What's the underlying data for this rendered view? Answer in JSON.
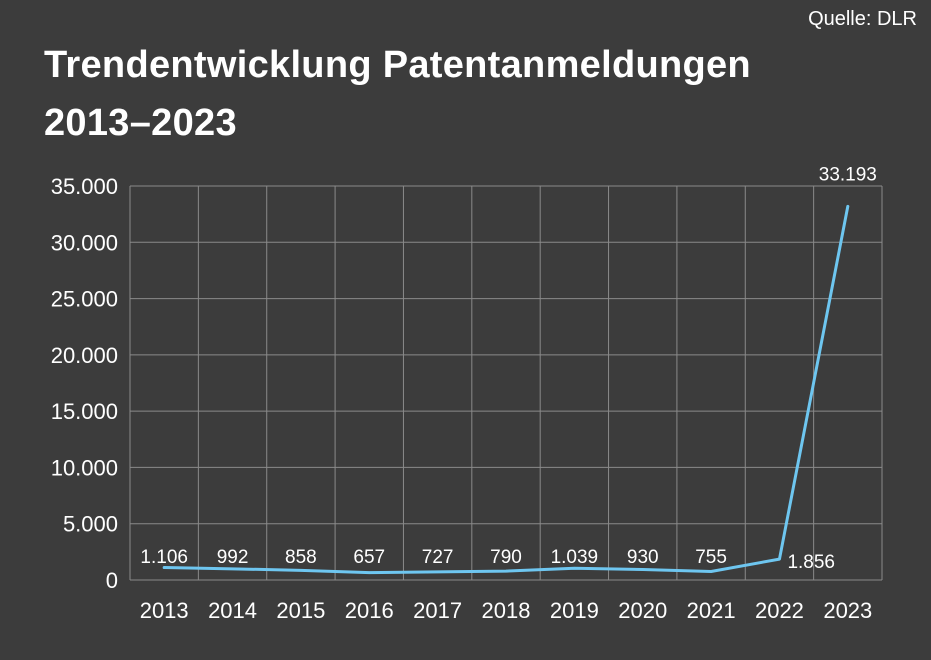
{
  "source": "Quelle: DLR",
  "chart_data": {
    "type": "line",
    "title": "Trendentwicklung Patentanmeldungen 2013–2023",
    "xlabel": "",
    "ylabel": "",
    "categories": [
      "2013",
      "2014",
      "2015",
      "2016",
      "2017",
      "2018",
      "2019",
      "2020",
      "2021",
      "2022",
      "2023"
    ],
    "values": [
      1106,
      992,
      858,
      657,
      727,
      790,
      1039,
      930,
      755,
      1856,
      33193
    ],
    "data_labels": [
      "1.106",
      "992",
      "858",
      "657",
      "727",
      "790",
      "1.039",
      "930",
      "755",
      "1.856",
      "33.193"
    ],
    "ylim": [
      0,
      35000
    ],
    "yticks": [
      0,
      5000,
      10000,
      15000,
      20000,
      25000,
      30000,
      35000
    ],
    "ytick_labels": [
      "0",
      "5.000",
      "10.000",
      "15.000",
      "20.000",
      "25.000",
      "30.000",
      "35.000"
    ],
    "grid": true,
    "legend": "none",
    "line_color": "#6ec6f0",
    "grid_color": "#8a8a8a"
  }
}
